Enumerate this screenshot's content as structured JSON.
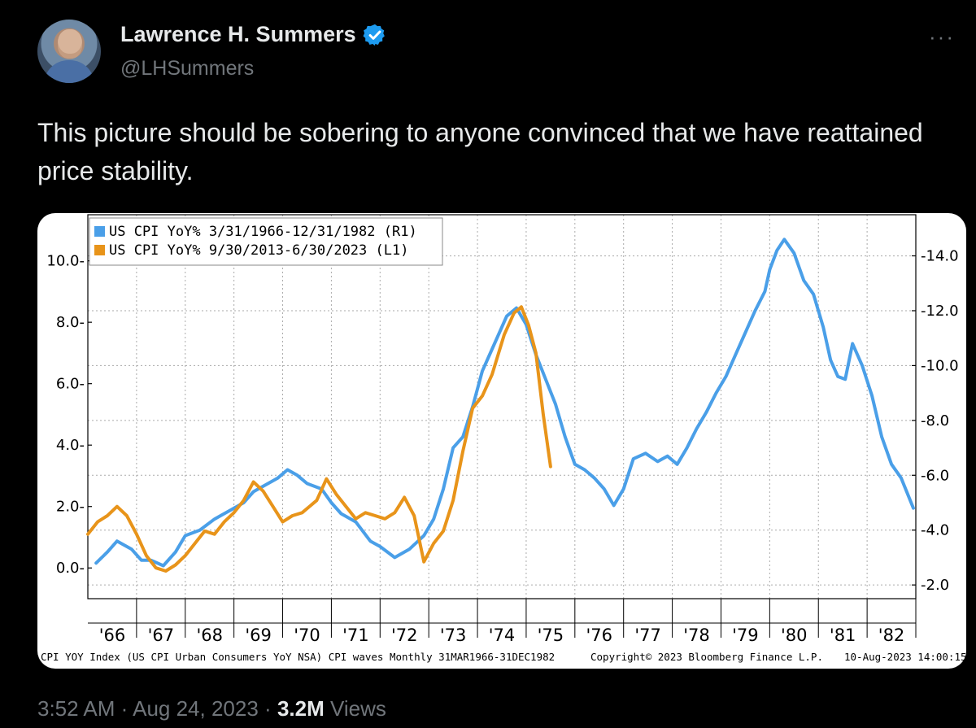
{
  "tweet": {
    "author_name": "Lawrence H. Summers",
    "handle": "@LHSummers",
    "text": "This picture should be sobering to anyone convinced that we have reattained price stability.",
    "time": "3:52 AM",
    "date": "Aug 24, 2023",
    "views_count": "3.2M",
    "views_label": "Views",
    "separator": "·",
    "more_label": "···",
    "verified_color": "#1d9bf0"
  },
  "chart_data": {
    "type": "line",
    "legend_placement": "top-left",
    "grid": true,
    "left_axis": {
      "ticks": [
        "0.0",
        "2.0",
        "4.0",
        "6.0",
        "8.0",
        "10.0"
      ],
      "ylim": [
        -1.0,
        11.5
      ]
    },
    "right_axis": {
      "ticks": [
        "2.0",
        "4.0",
        "6.0",
        "8.0",
        "10.0",
        "12.0",
        "14.0"
      ],
      "ylim": [
        1.5,
        15.5
      ]
    },
    "x_ticks": [
      "'66",
      "'67",
      "'68",
      "'69",
      "'70",
      "'71",
      "'72",
      "'73",
      "'74",
      "'75",
      "'76",
      "'77",
      "'78",
      "'79",
      "'80",
      "'81",
      "'82"
    ],
    "x_range": [
      1966.0,
      1983.0
    ],
    "series": [
      {
        "name": "US CPI YoY% 3/31/1966-12/31/1982 (R1)",
        "axis": "right",
        "color": "#4a9fe8",
        "x": [
          1966.17,
          1966.4,
          1966.6,
          1966.9,
          1967.1,
          1967.3,
          1967.55,
          1967.8,
          1968.0,
          1968.3,
          1968.6,
          1968.9,
          1969.2,
          1969.4,
          1969.6,
          1969.9,
          1970.1,
          1970.3,
          1970.5,
          1970.8,
          1971.0,
          1971.2,
          1971.5,
          1971.8,
          1972.0,
          1972.3,
          1972.6,
          1972.9,
          1973.1,
          1973.3,
          1973.5,
          1973.7,
          1973.9,
          1974.1,
          1974.35,
          1974.6,
          1974.8,
          1975.0,
          1975.2,
          1975.4,
          1975.6,
          1975.8,
          1976.0,
          1976.2,
          1976.4,
          1976.6,
          1976.8,
          1977.0,
          1977.2,
          1977.45,
          1977.7,
          1977.9,
          1978.1,
          1978.3,
          1978.5,
          1978.7,
          1978.9,
          1979.1,
          1979.3,
          1979.5,
          1979.7,
          1979.9,
          1980.0,
          1980.15,
          1980.3,
          1980.5,
          1980.7,
          1980.9,
          1981.1,
          1981.25,
          1981.4,
          1981.55,
          1981.7,
          1981.9,
          1982.1,
          1982.3,
          1982.5,
          1982.7,
          1982.95
        ],
        "y": [
          2.8,
          3.2,
          3.6,
          3.3,
          2.9,
          2.9,
          2.7,
          3.2,
          3.8,
          4.0,
          4.4,
          4.7,
          5.0,
          5.4,
          5.6,
          5.9,
          6.2,
          6.0,
          5.7,
          5.5,
          5.0,
          4.6,
          4.3,
          3.6,
          3.4,
          3.0,
          3.3,
          3.8,
          4.4,
          5.5,
          7.0,
          7.4,
          8.5,
          9.8,
          10.8,
          11.8,
          12.1,
          11.5,
          10.4,
          9.5,
          8.6,
          7.4,
          6.4,
          6.2,
          5.9,
          5.5,
          4.9,
          5.5,
          6.6,
          6.8,
          6.5,
          6.7,
          6.4,
          7.0,
          7.7,
          8.3,
          9.0,
          9.6,
          10.4,
          11.2,
          12.0,
          12.7,
          13.5,
          14.2,
          14.6,
          14.1,
          13.1,
          12.6,
          11.4,
          10.2,
          9.6,
          9.5,
          10.8,
          10.0,
          8.9,
          7.4,
          6.4,
          5.9,
          4.8
        ]
      },
      {
        "name": "US CPI YoY% 9/30/2013-6/30/2023 (L1)",
        "axis": "left",
        "color": "#e8941a",
        "x": [
          1966.0,
          1966.2,
          1966.4,
          1966.6,
          1966.8,
          1967.0,
          1967.2,
          1967.4,
          1967.6,
          1967.8,
          1968.0,
          1968.2,
          1968.4,
          1968.6,
          1968.8,
          1969.0,
          1969.2,
          1969.4,
          1969.6,
          1969.8,
          1970.0,
          1970.2,
          1970.4,
          1970.7,
          1970.9,
          1971.1,
          1971.3,
          1971.5,
          1971.7,
          1971.9,
          1972.1,
          1972.3,
          1972.5,
          1972.7,
          1972.9,
          1973.1,
          1973.3,
          1973.5,
          1973.7,
          1973.9,
          1974.1,
          1974.3,
          1974.55,
          1974.75,
          1974.9,
          1975.05,
          1975.2,
          1975.35,
          1975.5
        ],
        "y": [
          1.1,
          1.5,
          1.7,
          2.0,
          1.7,
          1.1,
          0.4,
          0.0,
          -0.1,
          0.1,
          0.4,
          0.8,
          1.2,
          1.1,
          1.5,
          1.8,
          2.2,
          2.8,
          2.5,
          2.0,
          1.5,
          1.7,
          1.8,
          2.2,
          2.9,
          2.4,
          2.0,
          1.6,
          1.8,
          1.7,
          1.6,
          1.8,
          2.3,
          1.7,
          0.2,
          0.8,
          1.2,
          2.2,
          3.8,
          5.2,
          5.6,
          6.3,
          7.6,
          8.3,
          8.5,
          7.9,
          7.0,
          5.0,
          3.3
        ]
      }
    ],
    "footer_left": "CPI YOY Index (US CPI Urban Consumers YoY NSA) CPI waves  Monthly 31MAR1966-31DEC1982",
    "footer_center": "Copyright© 2023 Bloomberg Finance L.P.",
    "footer_right": "10-Aug-2023 14:00:15"
  }
}
